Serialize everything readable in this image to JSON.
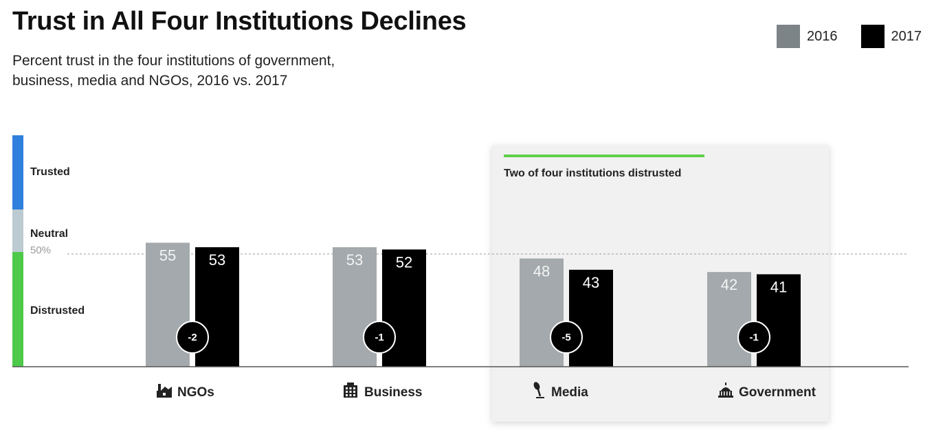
{
  "header": {
    "title": "Trust in All Four Institutions Declines",
    "subtitle_line1": "Percent trust in the four institutions of government,",
    "subtitle_line2": "business, media and NGOs, 2016 vs. 2017"
  },
  "legend": [
    {
      "label": "2016",
      "color": "#7d8487"
    },
    {
      "label": "2017",
      "color": "#000000"
    }
  ],
  "zones": {
    "trusted": {
      "label": "Trusted",
      "color": "#2f7fdc"
    },
    "neutral": {
      "label": "Neutral",
      "color": "#bccad1"
    },
    "distrusted": {
      "label": "Distrusted",
      "color": "#4ec94a"
    }
  },
  "reference_line_label": "50%",
  "callout": {
    "text": "Two of four institutions distrusted",
    "accent_color": "#5fd14a",
    "panel_color": "#f1f1f1"
  },
  "chart_data": {
    "type": "bar",
    "title": "Trust in All Four Institutions Declines",
    "subtitle": "Percent trust in the four institutions of government, business, media and NGOs, 2016 vs. 2017",
    "categories": [
      "NGOs",
      "Business",
      "Media",
      "Government"
    ],
    "category_icons": [
      "ngo-icon",
      "business-building-icon",
      "media-microphone-icon",
      "government-capitol-icon"
    ],
    "series": [
      {
        "name": "2016",
        "values": [
          55,
          53,
          48,
          42
        ],
        "color": "#a3a9ac"
      },
      {
        "name": "2017",
        "values": [
          53,
          52,
          43,
          41
        ],
        "color": "#000000"
      }
    ],
    "changes": [
      "-2",
      "-1",
      "-5",
      "-1"
    ],
    "reference_line": 50,
    "legend_position": "top-right",
    "grid": false
  }
}
